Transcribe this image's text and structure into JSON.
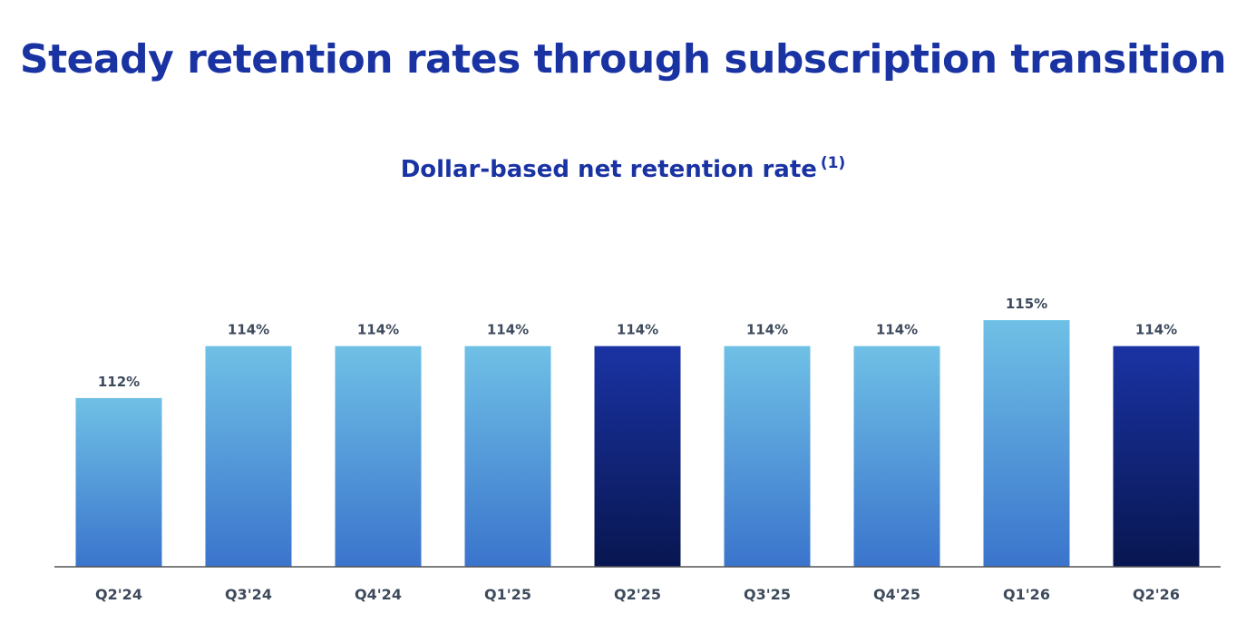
{
  "title": "Steady retention rates through subscription transition",
  "chart_data": {
    "type": "bar",
    "title": "Dollar-based net retention rate",
    "title_footnote": "(1)",
    "categories": [
      "Q2'24",
      "Q3'24",
      "Q4'24",
      "Q1'25",
      "Q2'25",
      "Q3'25",
      "Q4'25",
      "Q1'26",
      "Q2'26"
    ],
    "values": [
      112,
      114,
      114,
      114,
      114,
      114,
      114,
      115,
      114
    ],
    "value_labels": [
      "112%",
      "114%",
      "114%",
      "114%",
      "114%",
      "114%",
      "114%",
      "115%",
      "114%"
    ],
    "highlighted": [
      "Q2'25",
      "Q2'26"
    ],
    "xlabel": "",
    "ylabel": "",
    "grid": false,
    "colors": {
      "bar_light_top": "#6fc0e6",
      "bar_light_bottom": "#3a74cc",
      "bar_dark_top": "#1a33a3",
      "bar_dark_bottom": "#081650",
      "axis": "#555555",
      "title": "#1a33a3",
      "label": "#3d4a5c"
    }
  }
}
